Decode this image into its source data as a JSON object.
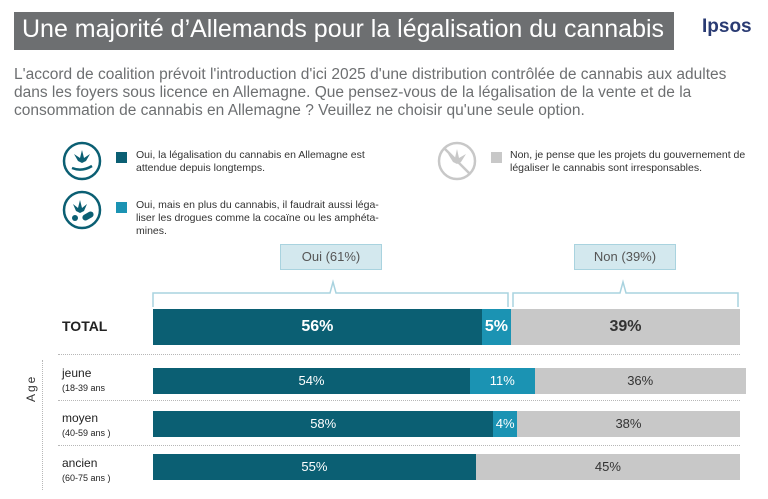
{
  "header": {
    "title": "Une majorité d’Allemands pour la légalisation du cannabis",
    "brand": "Ipsos"
  },
  "question": "L'accord de coalition prévoit l'introduction d'ici 2025 d'une distribution contrôlée de cannabis aux adultes dans les foyers sous licence en Allemagne. Que pensez-vous de la légalisation de la vente et de la consommation de cannabis en Allemagne ? Veuillez ne choisir qu'une seule option.",
  "legend": [
    {
      "text": "Oui, la légalisation du cannabis en Allemagne est attendue depuis longtemps.",
      "color": "#0b5f73",
      "icon": "cannabis-leaf-hand-icon"
    },
    {
      "text": "Oui, mais en plus du cannabis, il faudrait aussi léga-liser les drogues comme la cocaïne ou les amphéta-mines.",
      "color": "#1b93b3",
      "icon": "cannabis-pills-icon"
    },
    {
      "text": "Non, je pense que les projets du gouvernement de légaliser le cannabis sont irresponsables.",
      "color": "#c8c8c8",
      "icon": "no-cannabis-icon"
    }
  ],
  "brackets": {
    "oui": "Oui (61%)",
    "non": "Non (39%)"
  },
  "axis_group_label": "Age",
  "chart_data": {
    "type": "bar",
    "orientation": "horizontal",
    "stacked": true,
    "categories": [
      "TOTAL",
      "jeune",
      "moyen",
      "ancien"
    ],
    "category_sublabels": [
      "",
      "(18-39 ans",
      "(40-59 ans  )",
      "(60-75 ans  )"
    ],
    "series": [
      {
        "name": "Oui, la légalisation du cannabis en Allemagne est attendue depuis longtemps.",
        "values": [
          56,
          54,
          58,
          55
        ],
        "labels": [
          "56%",
          "54%",
          "58%",
          "55%"
        ],
        "color": "#0b5f73"
      },
      {
        "name": "Oui, mais en plus du cannabis, il faudrait aussi léga-liser les drogues comme la cocaïne ou les amphéta-mines.",
        "values": [
          5,
          11,
          4,
          0
        ],
        "labels": [
          "5%",
          "11%",
          "4%",
          ""
        ],
        "color": "#1b93b3"
      },
      {
        "name": "Non, je pense que les projets du gouvernement de légaliser le cannabis sont irresponsables.",
        "values": [
          39,
          36,
          38,
          45
        ],
        "labels": [
          "39%",
          "36%",
          "38%",
          "45%"
        ],
        "color": "#c8c8c8"
      }
    ],
    "xlim": [
      0,
      100
    ]
  }
}
